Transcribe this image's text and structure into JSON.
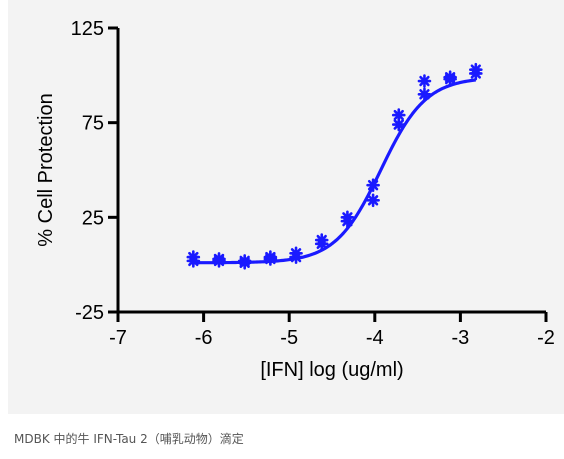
{
  "caption": "MDBK 中的牛 IFN-Tau 2（哺乳动物）滴定",
  "chart_data": {
    "type": "scatter",
    "title": "",
    "xlabel": "[IFN] log (ug/ml)",
    "ylabel": "% Cell Protection",
    "xlim": [
      -7,
      -2
    ],
    "ylim": [
      -25,
      125
    ],
    "xticks": [
      -7,
      -6,
      -5,
      -4,
      -3,
      -2
    ],
    "yticks": [
      -25,
      25,
      75,
      125
    ],
    "grid": false,
    "legend": "none",
    "color": "#1a1aff",
    "points": {
      "x": [
        -6.12,
        -6.12,
        -5.82,
        -5.82,
        -5.52,
        -5.52,
        -5.22,
        -5.22,
        -4.92,
        -4.92,
        -4.62,
        -4.62,
        -4.32,
        -4.32,
        -4.02,
        -4.02,
        -3.72,
        -3.72,
        -3.42,
        -3.42,
        -3.12,
        -3.12,
        -2.82,
        -2.82
      ],
      "y": [
        2,
        4,
        2,
        3,
        1,
        2,
        3,
        4,
        4,
        6,
        11,
        13,
        23,
        25,
        34,
        42,
        74,
        79,
        90,
        97,
        98,
        99,
        101,
        103
      ]
    },
    "fit": {
      "type": "sigmoid",
      "bottom": 1,
      "top": 99,
      "logEC50": -3.93,
      "hill": 1.65,
      "x_range": [
        -6.12,
        -2.82
      ]
    }
  }
}
